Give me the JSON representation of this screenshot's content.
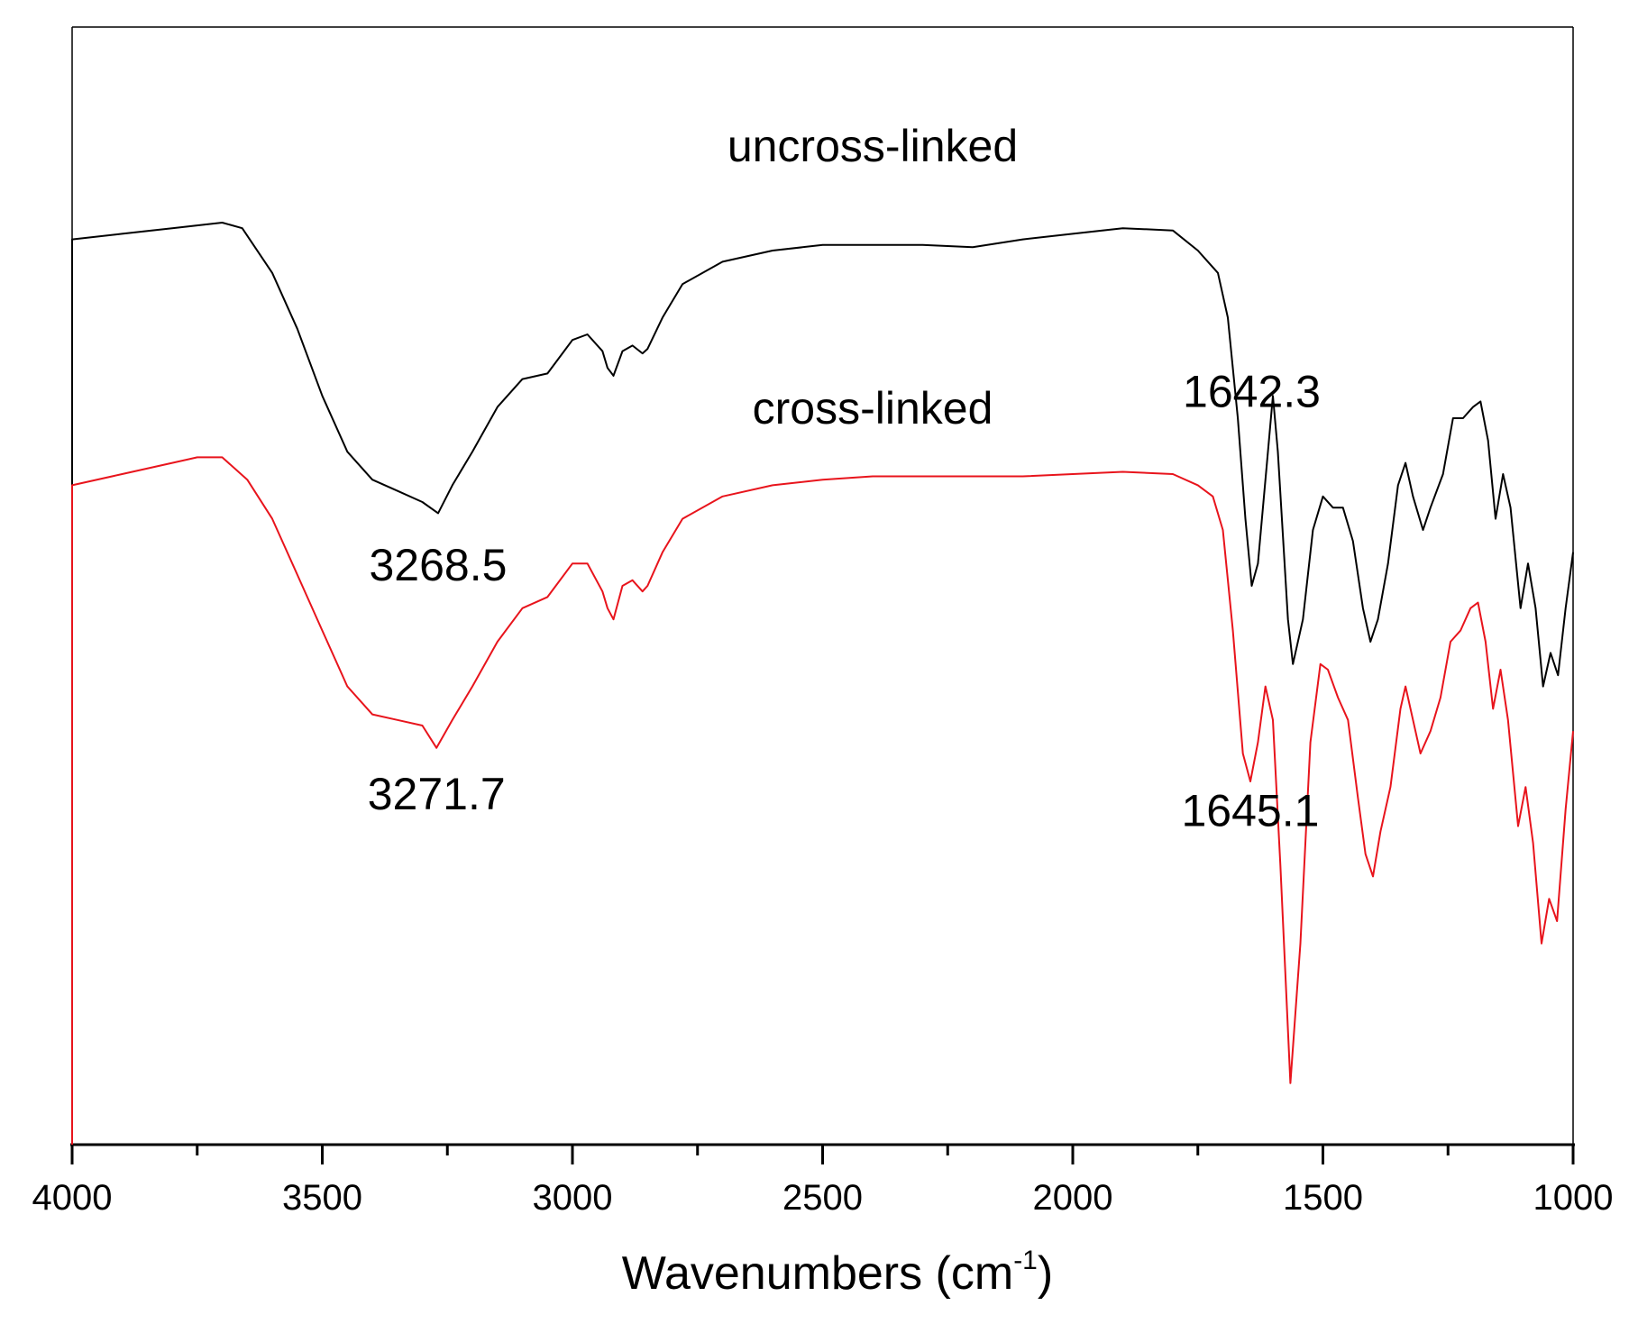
{
  "chart_data": {
    "type": "line",
    "xlabel_main": "Wavenumbers (cm",
    "xlabel_sup": "-1",
    "xlabel_tail": ")",
    "xlim": [
      4000,
      1000
    ],
    "x_reversed": true,
    "xticks": [
      4000,
      3500,
      3000,
      2500,
      2000,
      1500,
      1000
    ],
    "xtick_labels": [
      "4000",
      "3500",
      "3000",
      "2500",
      "2000",
      "1500",
      "1000"
    ],
    "ylim": [
      0,
      100
    ],
    "y_ticks_shown": false,
    "grid": false,
    "series": [
      {
        "name": "uncross-linked",
        "color": "#000000",
        "points": [
          [
            4000,
            81
          ],
          [
            3900,
            81.5
          ],
          [
            3800,
            82
          ],
          [
            3700,
            82.5
          ],
          [
            3660,
            82
          ],
          [
            3600,
            78
          ],
          [
            3550,
            73
          ],
          [
            3500,
            67
          ],
          [
            3450,
            62
          ],
          [
            3400,
            59.5
          ],
          [
            3350,
            58.5
          ],
          [
            3300,
            57.5
          ],
          [
            3268.5,
            56.5
          ],
          [
            3240,
            59
          ],
          [
            3200,
            62
          ],
          [
            3150,
            66
          ],
          [
            3100,
            68.5
          ],
          [
            3050,
            69
          ],
          [
            3000,
            72
          ],
          [
            2970,
            72.5
          ],
          [
            2940,
            71
          ],
          [
            2930,
            69.5
          ],
          [
            2918,
            68.8
          ],
          [
            2900,
            71
          ],
          [
            2880,
            71.5
          ],
          [
            2860,
            70.8
          ],
          [
            2850,
            71.2
          ],
          [
            2820,
            74
          ],
          [
            2780,
            77
          ],
          [
            2700,
            79
          ],
          [
            2600,
            80
          ],
          [
            2500,
            80.5
          ],
          [
            2400,
            80.5
          ],
          [
            2300,
            80.5
          ],
          [
            2200,
            80.3
          ],
          [
            2100,
            81
          ],
          [
            2000,
            81.5
          ],
          [
            1900,
            82
          ],
          [
            1800,
            81.8
          ],
          [
            1750,
            80
          ],
          [
            1730,
            79
          ],
          [
            1710,
            78
          ],
          [
            1690,
            74
          ],
          [
            1670,
            65
          ],
          [
            1655,
            56
          ],
          [
            1642.3,
            50
          ],
          [
            1630,
            52
          ],
          [
            1610,
            62
          ],
          [
            1600,
            67
          ],
          [
            1590,
            62
          ],
          [
            1570,
            47
          ],
          [
            1560,
            43
          ],
          [
            1540,
            47
          ],
          [
            1520,
            55
          ],
          [
            1500,
            58
          ],
          [
            1480,
            57
          ],
          [
            1460,
            57
          ],
          [
            1440,
            54
          ],
          [
            1420,
            48
          ],
          [
            1405,
            45
          ],
          [
            1390,
            47
          ],
          [
            1370,
            52
          ],
          [
            1350,
            59
          ],
          [
            1335,
            61
          ],
          [
            1320,
            58
          ],
          [
            1300,
            55
          ],
          [
            1285,
            57
          ],
          [
            1260,
            60
          ],
          [
            1240,
            65
          ],
          [
            1220,
            65
          ],
          [
            1200,
            66
          ],
          [
            1185,
            66.5
          ],
          [
            1170,
            63
          ],
          [
            1155,
            56
          ],
          [
            1140,
            60
          ],
          [
            1125,
            57
          ],
          [
            1105,
            48
          ],
          [
            1090,
            52
          ],
          [
            1075,
            48
          ],
          [
            1060,
            41
          ],
          [
            1045,
            44
          ],
          [
            1030,
            42
          ],
          [
            1015,
            48
          ],
          [
            1000,
            53
          ]
        ]
      },
      {
        "name": "cross-linked",
        "color": "#e8141c",
        "points": [
          [
            4000,
            59
          ],
          [
            3900,
            60
          ],
          [
            3800,
            61
          ],
          [
            3750,
            61.5
          ],
          [
            3700,
            61.5
          ],
          [
            3650,
            59.5
          ],
          [
            3600,
            56
          ],
          [
            3550,
            51
          ],
          [
            3500,
            46
          ],
          [
            3450,
            41
          ],
          [
            3400,
            38.5
          ],
          [
            3350,
            38
          ],
          [
            3300,
            37.5
          ],
          [
            3271.7,
            35.5
          ],
          [
            3240,
            38
          ],
          [
            3200,
            41
          ],
          [
            3150,
            45
          ],
          [
            3100,
            48
          ],
          [
            3050,
            49
          ],
          [
            3000,
            52
          ],
          [
            2970,
            52
          ],
          [
            2940,
            49.5
          ],
          [
            2930,
            48
          ],
          [
            2918,
            47
          ],
          [
            2900,
            50
          ],
          [
            2880,
            50.5
          ],
          [
            2860,
            49.5
          ],
          [
            2850,
            50
          ],
          [
            2820,
            53
          ],
          [
            2780,
            56
          ],
          [
            2700,
            58
          ],
          [
            2600,
            59
          ],
          [
            2500,
            59.5
          ],
          [
            2400,
            59.8
          ],
          [
            2300,
            59.8
          ],
          [
            2200,
            59.8
          ],
          [
            2100,
            59.8
          ],
          [
            2000,
            60
          ],
          [
            1900,
            60.2
          ],
          [
            1800,
            60
          ],
          [
            1750,
            59
          ],
          [
            1720,
            58
          ],
          [
            1700,
            55
          ],
          [
            1680,
            46
          ],
          [
            1660,
            35
          ],
          [
            1645.1,
            32.5
          ],
          [
            1630,
            36
          ],
          [
            1615,
            41
          ],
          [
            1600,
            38
          ],
          [
            1585,
            25
          ],
          [
            1565,
            5.5
          ],
          [
            1545,
            18
          ],
          [
            1525,
            36
          ],
          [
            1505,
            43
          ],
          [
            1490,
            42.5
          ],
          [
            1470,
            40
          ],
          [
            1450,
            38
          ],
          [
            1430,
            31
          ],
          [
            1415,
            26
          ],
          [
            1400,
            24
          ],
          [
            1385,
            28
          ],
          [
            1365,
            32
          ],
          [
            1345,
            39
          ],
          [
            1335,
            41
          ],
          [
            1320,
            38
          ],
          [
            1305,
            35
          ],
          [
            1285,
            37
          ],
          [
            1265,
            40
          ],
          [
            1245,
            45
          ],
          [
            1225,
            46
          ],
          [
            1205,
            48
          ],
          [
            1190,
            48.5
          ],
          [
            1175,
            45
          ],
          [
            1160,
            39
          ],
          [
            1145,
            42.5
          ],
          [
            1130,
            38
          ],
          [
            1110,
            28.5
          ],
          [
            1095,
            32
          ],
          [
            1080,
            27
          ],
          [
            1063,
            18
          ],
          [
            1048,
            22
          ],
          [
            1032,
            20
          ],
          [
            1015,
            30
          ],
          [
            1000,
            37
          ]
        ]
      }
    ],
    "annotations": [
      {
        "text": "uncross-linked",
        "x": 2400,
        "y": 88
      },
      {
        "text": "3268.5",
        "x": 3268.5,
        "y": 50.5
      },
      {
        "text": "1642.3",
        "x": 1642.3,
        "y": 66
      },
      {
        "text": "cross-linked",
        "x": 2400,
        "y": 64.5
      },
      {
        "text": "3271.7",
        "x": 3271.7,
        "y": 30
      },
      {
        "text": "1645.1",
        "x": 1645.1,
        "y": 28.5
      }
    ]
  }
}
